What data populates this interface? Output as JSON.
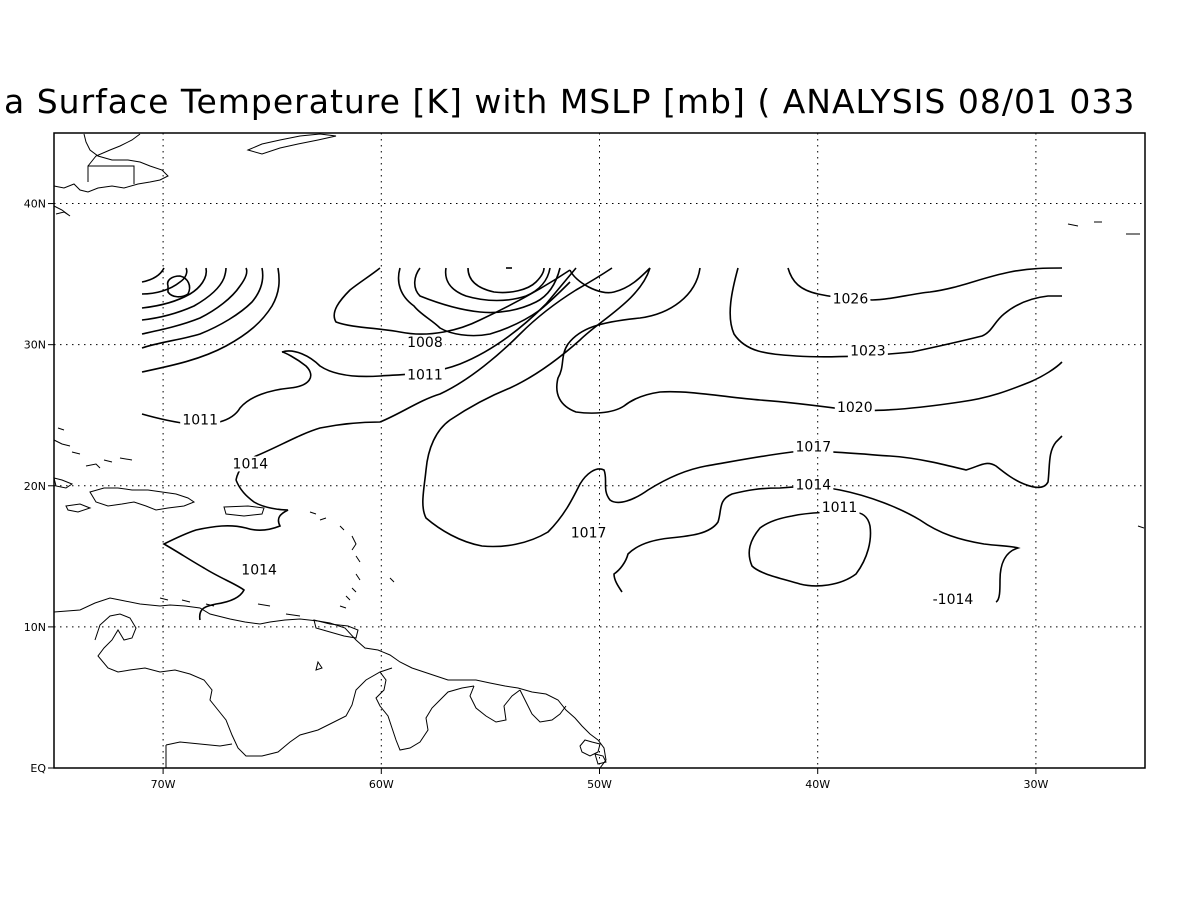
{
  "title": "a Surface Temperature [K] with MSLP [mb] ( ANALYSIS 08/01 033",
  "map": {
    "lon_range": [
      -75,
      -25
    ],
    "lat_range": [
      0,
      45
    ],
    "gridlines": "dotted",
    "x_ticks": [
      {
        "lon": -70,
        "label": "70W"
      },
      {
        "lon": -60,
        "label": "60W"
      },
      {
        "lon": -50,
        "label": "50W"
      },
      {
        "lon": -40,
        "label": "40W"
      },
      {
        "lon": -30,
        "label": "30W"
      }
    ],
    "y_ticks": [
      {
        "lat": 0,
        "label": "EQ"
      },
      {
        "lat": 10,
        "label": "10N"
      },
      {
        "lat": 20,
        "label": "20N"
      },
      {
        "lat": 30,
        "label": "30N"
      },
      {
        "lat": 40,
        "label": "40N"
      }
    ],
    "contour_labels": [
      {
        "text": "1026",
        "lon": -38.5,
        "lat": 33.0
      },
      {
        "text": "1023",
        "lon": -37.7,
        "lat": 29.3
      },
      {
        "text": "1020",
        "lon": -38.3,
        "lat": 25.3
      },
      {
        "text": "1017",
        "lon": -40.2,
        "lat": 22.5
      },
      {
        "text": "1014",
        "lon": -40.2,
        "lat": 19.8
      },
      {
        "text": "1011",
        "lon": -39.0,
        "lat": 18.2
      },
      {
        "text": "-1014",
        "lon": -33.8,
        "lat": 11.7
      },
      {
        "text": "1008",
        "lon": -58.0,
        "lat": 29.9
      },
      {
        "text": "1011",
        "lon": -58.0,
        "lat": 27.6
      },
      {
        "text": "1011",
        "lon": -68.3,
        "lat": 24.4
      },
      {
        "text": "1014",
        "lon": -66.0,
        "lat": 21.3
      },
      {
        "text": "1017",
        "lon": -50.5,
        "lat": 16.4
      },
      {
        "text": "1014",
        "lon": -65.6,
        "lat": 13.8
      }
    ]
  }
}
